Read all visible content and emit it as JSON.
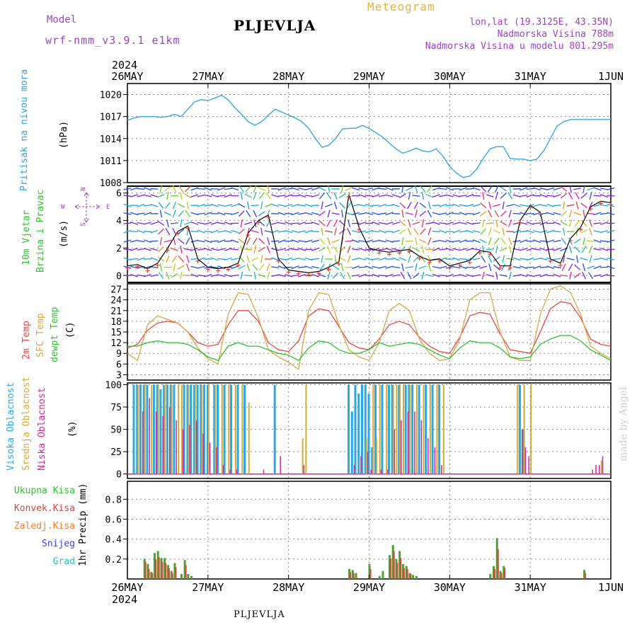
{
  "header": {
    "model_label": "Model",
    "model_name": "wrf-nmm_v3.9.1 e1km",
    "title": "PLJEVLJA",
    "meteogram": "Meteogram",
    "coords": "lon,lat (19.3125E, 43.35N)",
    "elevation": "Nadmorska Visina 788m",
    "model_elevation": "Nadmorska Visina u modelu 801.295m"
  },
  "footer": {
    "station": "PLJEVLJA",
    "credit": "made by Angel"
  },
  "colors": {
    "pressure": "#3aa6e0",
    "wind_black": "#000000",
    "wind_red": "#e04040",
    "temp2m": "#e84848",
    "sfc": "#d8a848",
    "dewpt": "#30c030",
    "high_cloud": "#28a8e8",
    "mid_cloud": "#d8a838",
    "low_cloud": "#d02898",
    "total_precip": "#50a030",
    "convective": "#e04040",
    "frozen": "#f08030",
    "snow": "#4040e0",
    "hail": "#30c0c0",
    "grid": "#888888"
  },
  "time_axis": {
    "year": "2024",
    "labels": [
      "26MAY",
      "27MAY",
      "28MAY",
      "29MAY",
      "30MAY",
      "31MAY",
      "1JUN"
    ],
    "start_hour": 0,
    "end_hour": 144
  },
  "chart_data": [
    {
      "type": "line",
      "name": "pressure",
      "ylabel_1": "Pritisak na nivou mora",
      "unit": "(hPa)",
      "ylim": [
        1008,
        1021.5
      ],
      "yticks": [
        1008,
        1011,
        1014,
        1017,
        1020
      ],
      "x": [
        0,
        2,
        4,
        6,
        8,
        10,
        12,
        14,
        16,
        18,
        20,
        22,
        24,
        26,
        28,
        30,
        32,
        34,
        36,
        38,
        40,
        42,
        44,
        46,
        48,
        50,
        52,
        54,
        56,
        58,
        60,
        62,
        64,
        66,
        68,
        70,
        72,
        74,
        76,
        78,
        80,
        82,
        84,
        86,
        88,
        90,
        92,
        94,
        96,
        98,
        100,
        102,
        104,
        106,
        108,
        110,
        112,
        114,
        116,
        118,
        120,
        122,
        124,
        126,
        128,
        130,
        132,
        134,
        136,
        138,
        140,
        142,
        144
      ],
      "y": [
        1016.5,
        1016.8,
        1017,
        1017,
        1017,
        1016.9,
        1017,
        1017.3,
        1017,
        1018,
        1019,
        1019.3,
        1019.2,
        1019.5,
        1019.9,
        1019.3,
        1018.2,
        1017.3,
        1016.3,
        1015.8,
        1016.3,
        1017.2,
        1018,
        1017.6,
        1017.2,
        1016.8,
        1016.3,
        1015.4,
        1014,
        1012.8,
        1013.1,
        1014,
        1015.3,
        1015.4,
        1015.4,
        1015.8,
        1015.4,
        1014.8,
        1014.2,
        1013.4,
        1012.6,
        1012,
        1012.3,
        1012.7,
        1012.3,
        1012.2,
        1012.6,
        1011.6,
        1010.2,
        1009.3,
        1008.7,
        1008.9,
        1009.8,
        1011.3,
        1012.6,
        1012.9,
        1012.9,
        1011.3,
        1011.2,
        1011.2,
        1011,
        1011.2,
        1012.3,
        1014,
        1015.7,
        1016.3,
        1016.6,
        1016.6,
        1016.6,
        1016.6,
        1016.6,
        1016.6,
        1016.6
      ]
    },
    {
      "type": "line",
      "name": "wind",
      "ylabel_1": "10m Vjetar",
      "ylabel_2": "Brzina i Pravac",
      "unit": "(m/s)",
      "compass": {
        "n": "N",
        "s": "S",
        "e": "E",
        "w": "W"
      },
      "ylim": [
        -0.5,
        6.5
      ],
      "yticks": [
        0,
        2,
        4,
        6
      ],
      "x": [
        0,
        3,
        6,
        9,
        12,
        15,
        18,
        21,
        24,
        27,
        30,
        33,
        36,
        39,
        42,
        45,
        48,
        51,
        54,
        57,
        60,
        63,
        66,
        69,
        72,
        75,
        78,
        81,
        84,
        87,
        90,
        93,
        96,
        99,
        102,
        105,
        108,
        111,
        114,
        117,
        120,
        123,
        126,
        129,
        132,
        135,
        138,
        141,
        144
      ],
      "y": [
        0.7,
        0.8,
        0.5,
        0.9,
        2,
        3.2,
        3.6,
        1.2,
        0.6,
        0.5,
        0.6,
        0.9,
        3.1,
        4,
        4.4,
        1.2,
        0.4,
        0.3,
        0.2,
        0.3,
        0.6,
        1,
        5.9,
        3.5,
        2,
        1.8,
        1.7,
        1.8,
        1.9,
        1.4,
        1.1,
        1.2,
        0.7,
        0.9,
        1.1,
        1.8,
        1.7,
        0.7,
        0.7,
        4,
        5.1,
        4.6,
        1.2,
        0.9,
        2.7,
        3.5,
        5,
        5.4,
        5.3
      ]
    },
    {
      "type": "line",
      "name": "temperature",
      "ylabel_1": "2m Temp",
      "ylabel_2": "SFC Temp",
      "ylabel_3": "dewpt Temp",
      "unit": "(C)",
      "ylim": [
        1.5,
        28.5
      ],
      "yticks": [
        3,
        6,
        9,
        12,
        15,
        18,
        21,
        24,
        27
      ],
      "x": [
        0,
        3,
        6,
        9,
        12,
        15,
        18,
        21,
        24,
        27,
        30,
        33,
        36,
        39,
        42,
        45,
        48,
        51,
        54,
        57,
        60,
        63,
        66,
        69,
        72,
        75,
        78,
        81,
        84,
        87,
        90,
        93,
        96,
        99,
        102,
        105,
        108,
        111,
        114,
        117,
        120,
        123,
        126,
        129,
        132,
        135,
        138,
        141,
        144
      ],
      "series": [
        {
          "name": "2m Temp",
          "values": [
            10.5,
            11.5,
            15.5,
            17.5,
            18,
            17.5,
            15,
            12,
            11,
            11.5,
            17,
            21,
            21,
            18,
            12,
            10,
            9.5,
            12.5,
            19.5,
            21.5,
            21,
            16.5,
            12,
            10.5,
            10,
            13,
            17,
            18,
            17,
            13.5,
            11,
            9.5,
            9,
            13.5,
            19.5,
            20.5,
            20,
            14.5,
            10,
            9.5,
            9,
            15,
            21.5,
            23.5,
            23,
            19,
            13,
            11.5,
            11
          ]
        },
        {
          "name": "SFC Temp",
          "values": [
            9,
            7,
            17,
            19.5,
            18.5,
            17.5,
            15,
            10.5,
            7.5,
            6,
            20,
            26,
            25.5,
            19,
            10,
            8,
            6.5,
            4.5,
            21,
            26,
            25.5,
            17,
            10,
            8,
            7,
            12,
            21,
            23,
            21,
            13,
            9,
            7,
            7.5,
            13,
            24,
            26,
            26,
            15,
            8,
            7,
            7,
            20,
            27,
            28,
            26,
            20,
            11,
            9,
            7.5
          ]
        },
        {
          "name": "dewpt Temp",
          "values": [
            11,
            11,
            12,
            12.5,
            12,
            12,
            11.5,
            10,
            8,
            7,
            11,
            12,
            11,
            11,
            10,
            9,
            8.5,
            7,
            10.5,
            12.5,
            12,
            10,
            9,
            9,
            10,
            12,
            11,
            11.5,
            12,
            11.5,
            10,
            8.5,
            7.5,
            10.5,
            12.5,
            12,
            12,
            10.5,
            8,
            7.5,
            8,
            11.5,
            13,
            14,
            14,
            12.5,
            10,
            8.5,
            7
          ]
        }
      ]
    },
    {
      "type": "bar",
      "name": "cloudiness",
      "ylabel_1": "Visoka Oblacnost",
      "ylabel_2": "Srednja Oblacnost",
      "ylabel_3": "Niska Oblacnost",
      "unit": "(%)",
      "ylim": [
        -5,
        102
      ],
      "yticks": [
        0,
        25,
        50,
        75,
        100
      ],
      "high": [
        [
          2,
          100
        ],
        [
          3,
          100
        ],
        [
          4,
          100
        ],
        [
          5,
          100
        ],
        [
          6,
          100
        ],
        [
          8,
          100
        ],
        [
          9,
          100
        ],
        [
          10,
          95
        ],
        [
          11,
          100
        ],
        [
          12,
          100
        ],
        [
          13,
          100
        ],
        [
          14,
          100
        ],
        [
          17,
          100
        ],
        [
          18,
          100
        ],
        [
          19,
          100
        ],
        [
          20,
          100
        ],
        [
          21,
          100
        ],
        [
          22,
          100
        ],
        [
          23,
          100
        ],
        [
          24,
          100
        ],
        [
          26,
          100
        ],
        [
          27,
          100
        ],
        [
          29,
          100
        ],
        [
          31,
          100
        ],
        [
          33,
          100
        ],
        [
          35,
          100
        ],
        [
          44,
          100
        ],
        [
          66,
          100
        ],
        [
          67,
          70
        ],
        [
          68,
          100
        ],
        [
          69,
          90
        ],
        [
          70,
          100
        ],
        [
          71,
          100
        ],
        [
          72,
          90
        ],
        [
          73,
          30
        ],
        [
          74,
          100
        ],
        [
          76,
          100
        ],
        [
          78,
          100
        ],
        [
          79,
          100
        ],
        [
          81,
          100
        ],
        [
          83,
          100
        ],
        [
          84,
          100
        ],
        [
          85,
          100
        ],
        [
          87,
          100
        ],
        [
          89,
          100
        ],
        [
          91,
          100
        ],
        [
          93,
          100
        ],
        [
          117,
          100
        ],
        [
          118,
          50
        ]
      ],
      "mid": [
        [
          3,
          100
        ],
        [
          5,
          100
        ],
        [
          7,
          100
        ],
        [
          9,
          100
        ],
        [
          11,
          100
        ],
        [
          13,
          100
        ],
        [
          15,
          100
        ],
        [
          16,
          100
        ],
        [
          18,
          100
        ],
        [
          20,
          100
        ],
        [
          22,
          100
        ],
        [
          24,
          100
        ],
        [
          26,
          100
        ],
        [
          28,
          100
        ],
        [
          30,
          100
        ],
        [
          32,
          100
        ],
        [
          34,
          100
        ],
        [
          36,
          80
        ],
        [
          52,
          40
        ],
        [
          53,
          100
        ],
        [
          71,
          40
        ],
        [
          73,
          100
        ],
        [
          74,
          40
        ],
        [
          75,
          100
        ],
        [
          77,
          100
        ],
        [
          79,
          100
        ],
        [
          80,
          100
        ],
        [
          81,
          100
        ],
        [
          82,
          100
        ],
        [
          84,
          100
        ],
        [
          86,
          100
        ],
        [
          88,
          100
        ],
        [
          90,
          100
        ],
        [
          92,
          100
        ],
        [
          94,
          100
        ],
        [
          116,
          100
        ],
        [
          118,
          100
        ],
        [
          120,
          100
        ],
        [
          141,
          15
        ]
      ],
      "low": [
        [
          4,
          70
        ],
        [
          6,
          85
        ],
        [
          8,
          70
        ],
        [
          10,
          65
        ],
        [
          12,
          75
        ],
        [
          14,
          60
        ],
        [
          16,
          50
        ],
        [
          18,
          55
        ],
        [
          20,
          60
        ],
        [
          22,
          45
        ],
        [
          24,
          35
        ],
        [
          26,
          30
        ],
        [
          28,
          10
        ],
        [
          30,
          5
        ],
        [
          32,
          5
        ],
        [
          40,
          5
        ],
        [
          45,
          20
        ],
        [
          52,
          10
        ],
        [
          67,
          10
        ],
        [
          69,
          20
        ],
        [
          71,
          25
        ],
        [
          72,
          5
        ],
        [
          75,
          5
        ],
        [
          77,
          5
        ],
        [
          79,
          50
        ],
        [
          81,
          60
        ],
        [
          83,
          70
        ],
        [
          85,
          70
        ],
        [
          87,
          60
        ],
        [
          89,
          40
        ],
        [
          91,
          30
        ],
        [
          93,
          10
        ],
        [
          117,
          50
        ],
        [
          118,
          30
        ],
        [
          119,
          20
        ],
        [
          138,
          5
        ],
        [
          139,
          10
        ],
        [
          140,
          10
        ],
        [
          141,
          20
        ]
      ]
    },
    {
      "type": "bar",
      "name": "precipitation",
      "ylabel_1": "1hr Precip (mm)",
      "legend": [
        "Ukupna Kisa",
        "Konvek.Kisa",
        "Zaledj.Kisa",
        "Snijeg",
        "Grad"
      ],
      "ylim": [
        0,
        0.98
      ],
      "yticks": [
        0.2,
        0.4,
        0.6,
        0.8
      ],
      "total": [
        [
          5,
          0.2
        ],
        [
          6,
          0.15
        ],
        [
          7,
          0.07
        ],
        [
          8,
          0.26
        ],
        [
          9,
          0.28
        ],
        [
          10,
          0.21
        ],
        [
          11,
          0.21
        ],
        [
          12,
          0.14
        ],
        [
          13,
          0.08
        ],
        [
          14,
          0.16
        ],
        [
          16,
          0.05
        ],
        [
          17,
          0.19
        ],
        [
          18,
          0.05
        ],
        [
          19,
          0.03
        ],
        [
          66,
          0.1
        ],
        [
          67,
          0.09
        ],
        [
          68,
          0.06
        ],
        [
          72,
          0.15
        ],
        [
          75,
          0.03
        ],
        [
          76,
          0.08
        ],
        [
          78,
          0.24
        ],
        [
          79,
          0.34
        ],
        [
          80,
          0.2
        ],
        [
          81,
          0.28
        ],
        [
          82,
          0.15
        ],
        [
          83,
          0.13
        ],
        [
          84,
          0.06
        ],
        [
          85,
          0.04
        ],
        [
          86,
          0.03
        ],
        [
          108,
          0.05
        ],
        [
          109,
          0.13
        ],
        [
          110,
          0.41
        ],
        [
          111,
          0.08
        ],
        [
          112,
          0.13
        ],
        [
          136,
          0.09
        ]
      ],
      "convective": [
        [
          5,
          0.17
        ],
        [
          6,
          0.1
        ],
        [
          7,
          0.06
        ],
        [
          8,
          0.2
        ],
        [
          9,
          0.22
        ],
        [
          10,
          0.17
        ],
        [
          11,
          0.16
        ],
        [
          12,
          0.11
        ],
        [
          13,
          0.06
        ],
        [
          14,
          0.12
        ],
        [
          17,
          0.14
        ],
        [
          66,
          0.07
        ],
        [
          67,
          0.06
        ],
        [
          72,
          0.1
        ],
        [
          78,
          0.2
        ],
        [
          79,
          0.28
        ],
        [
          80,
          0.16
        ],
        [
          81,
          0.21
        ],
        [
          82,
          0.11
        ],
        [
          83,
          0.1
        ],
        [
          84,
          0.05
        ],
        [
          109,
          0.1
        ],
        [
          110,
          0.3
        ],
        [
          111,
          0.06
        ],
        [
          112,
          0.11
        ],
        [
          136,
          0.06
        ]
      ]
    }
  ]
}
